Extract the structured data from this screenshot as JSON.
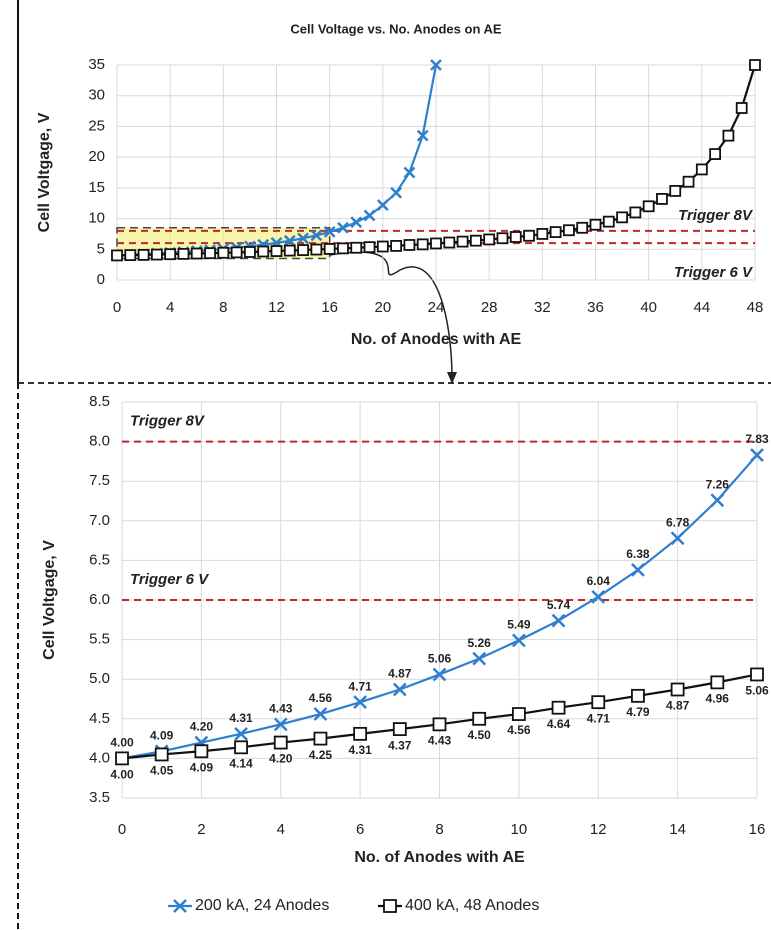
{
  "chart_data": [
    {
      "type": "line",
      "title": "Cell Voltage vs. No. Anodes on AE",
      "xlabel": "No. of Anodes with AE",
      "ylabel": "Cell Voltgage, V",
      "x": [
        0,
        1,
        2,
        3,
        4,
        5,
        6,
        7,
        8,
        9,
        10,
        11,
        12,
        13,
        14,
        15,
        16,
        17,
        18,
        19,
        20,
        21,
        22,
        23,
        24,
        25,
        26,
        27,
        28,
        29,
        30,
        31,
        32,
        33,
        34,
        35,
        36,
        37,
        38,
        39,
        40,
        41,
        42,
        43,
        44,
        45,
        46,
        47,
        48
      ],
      "xlim": [
        0,
        48
      ],
      "xticks": [
        0,
        4,
        8,
        12,
        16,
        20,
        24,
        28,
        32,
        36,
        40,
        44,
        48
      ],
      "ylim": [
        0,
        35
      ],
      "yticks": [
        0,
        5,
        10,
        15,
        20,
        25,
        30,
        35
      ],
      "grid": true,
      "series": [
        {
          "color": "#2f7fcf",
          "marker": "x",
          "values": [
            4.0,
            4.09,
            4.2,
            4.31,
            4.43,
            4.56,
            4.71,
            4.87,
            5.06,
            5.26,
            5.49,
            5.74,
            6.04,
            6.38,
            6.78,
            7.26,
            7.83,
            8.5,
            9.4,
            10.5,
            12.2,
            14.2,
            17.5,
            23.5,
            35,
            null,
            null,
            null,
            null,
            null,
            null,
            null,
            null,
            null,
            null,
            null,
            null,
            null,
            null,
            null,
            null,
            null,
            null,
            null,
            null,
            null,
            null,
            null,
            null
          ]
        },
        {
          "color": "#111111",
          "marker": "square",
          "values": [
            4.0,
            4.05,
            4.09,
            4.14,
            4.2,
            4.25,
            4.31,
            4.37,
            4.43,
            4.5,
            4.56,
            4.64,
            4.71,
            4.79,
            4.87,
            4.96,
            5.06,
            5.15,
            5.25,
            5.35,
            5.45,
            5.55,
            5.7,
            5.8,
            5.95,
            6.1,
            6.25,
            6.4,
            6.6,
            6.8,
            7.0,
            7.2,
            7.5,
            7.8,
            8.1,
            8.5,
            9.0,
            9.5,
            10.2,
            11.0,
            12.0,
            13.2,
            14.5,
            16.0,
            18.0,
            20.5,
            23.5,
            28,
            35
          ]
        }
      ],
      "reference_lines": [
        {
          "value": 8,
          "label": "Trigger 8V",
          "color": "#c0282d"
        },
        {
          "value": 6,
          "label": "Trigger 6 V",
          "color": "#c0282d"
        }
      ]
    },
    {
      "type": "line",
      "xlabel": "No. of Anodes with AE",
      "ylabel": "Cell Voltgage, V",
      "x": [
        0,
        1,
        2,
        3,
        4,
        5,
        6,
        7,
        8,
        9,
        10,
        11,
        12,
        13,
        14,
        15,
        16
      ],
      "xlim": [
        0,
        16
      ],
      "xticks": [
        0,
        2,
        4,
        6,
        8,
        10,
        12,
        14,
        16
      ],
      "ylim": [
        3.5,
        8.5
      ],
      "yticks": [
        3.5,
        {
          "value": 4,
          "label": "4.0"
        },
        4.5,
        {
          "value": 5,
          "label": "5.0"
        },
        5.5,
        {
          "value": 6,
          "label": "6.0"
        },
        6.5,
        {
          "value": 7,
          "label": "7.0"
        },
        7.5,
        {
          "value": 8,
          "label": "8.0"
        },
        8.5
      ],
      "grid": true,
      "legend": "bottom",
      "series": [
        {
          "name": "200 kA, 24 Anodes",
          "color": "#2f7fcf",
          "marker": "x",
          "values": [
            4.0,
            4.09,
            4.2,
            4.31,
            4.43,
            4.56,
            4.71,
            4.87,
            5.06,
            5.26,
            5.49,
            5.74,
            6.04,
            6.38,
            6.78,
            7.26,
            7.83
          ],
          "value_labels": [
            "4.00",
            "4.09",
            "4.20",
            "4.31",
            "4.43",
            "4.56",
            "4.71",
            "4.87",
            "5.06",
            "5.26",
            "5.49",
            "5.74",
            "6.04",
            "6.38",
            "6.78",
            "7.26",
            "7.83"
          ]
        },
        {
          "name": "400 kA, 48 Anodes",
          "color": "#111111",
          "marker": "square",
          "values": [
            4.0,
            4.05,
            4.09,
            4.14,
            4.2,
            4.25,
            4.31,
            4.37,
            4.43,
            4.5,
            4.56,
            4.64,
            4.71,
            4.79,
            4.87,
            4.96,
            5.06
          ],
          "value_labels": [
            "4.00",
            "4.05",
            "4.09",
            "4.14",
            "4.20",
            "4.25",
            "4.31",
            "4.37",
            "4.43",
            "4.50",
            "4.56",
            "4.64",
            "4.71",
            "4.79",
            "4.87",
            "4.96",
            "5.06"
          ]
        }
      ],
      "reference_lines": [
        {
          "value": 8,
          "label": "Trigger 8V",
          "color": "#c0282d"
        },
        {
          "value": 6,
          "label": "Trigger 6 V",
          "color": "#c0282d"
        }
      ]
    }
  ]
}
